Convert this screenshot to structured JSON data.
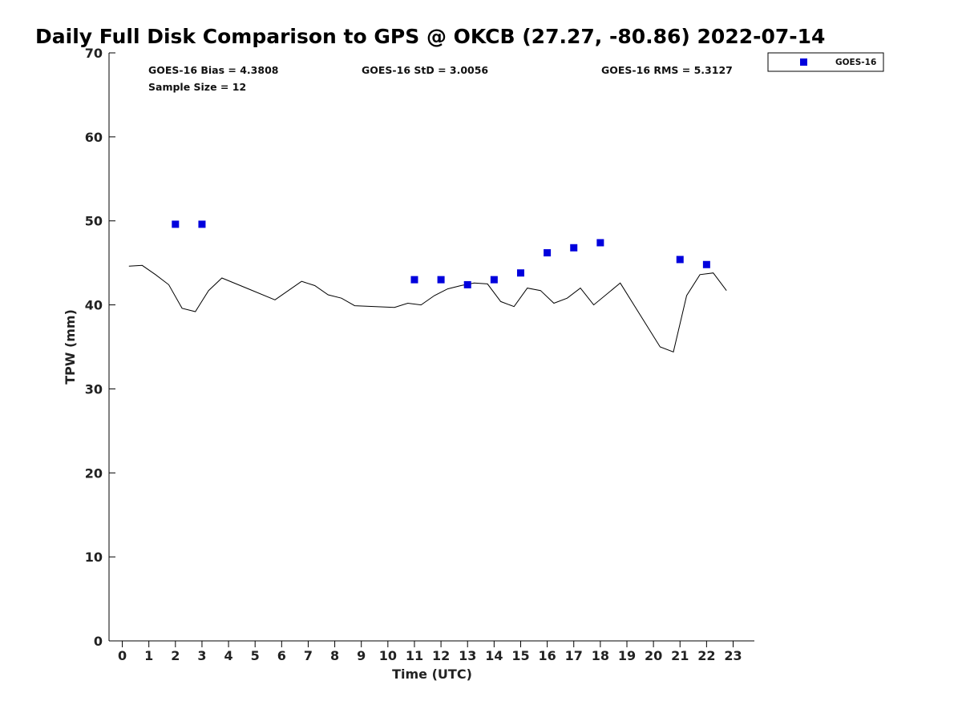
{
  "chart_data": {
    "type": "scatter",
    "title": "Daily Full Disk Comparison to GPS @ OKCB (27.27, -80.86) 2022-07-14",
    "xlabel": "Time (UTC)",
    "ylabel": "TPW (mm)",
    "xlim": [
      -0.5,
      23.8
    ],
    "ylim": [
      0,
      70
    ],
    "x_ticks": [
      0,
      1,
      2,
      3,
      4,
      5,
      6,
      7,
      8,
      9,
      10,
      11,
      12,
      13,
      14,
      15,
      16,
      17,
      18,
      19,
      20,
      21,
      22,
      23
    ],
    "y_ticks": [
      0,
      10,
      20,
      30,
      40,
      50,
      60,
      70
    ],
    "grid": false,
    "legend_position": "top-right, outside plot",
    "stats": {
      "bias": "GOES-16 Bias = 4.3808",
      "std": "GOES-16 StD = 3.0056",
      "rms": "GOES-16 RMS = 5.3127",
      "sample": "Sample Size = 12"
    },
    "series": [
      {
        "name": "GOES-16",
        "kind": "scatter",
        "color": "#0000dd",
        "marker": "square",
        "x": [
          2,
          3,
          11,
          12,
          13,
          14,
          15,
          16,
          17,
          18,
          21,
          22
        ],
        "y": [
          49.6,
          49.6,
          43.0,
          43.0,
          42.4,
          43.0,
          43.8,
          46.2,
          46.8,
          47.4,
          45.4,
          44.8
        ]
      },
      {
        "kind": "line",
        "color": "#000000",
        "x": [
          0.25,
          0.75,
          1.25,
          1.75,
          2.25,
          2.75,
          3.25,
          3.75,
          4.75,
          5.75,
          6.75,
          7.25,
          7.75,
          8.25,
          8.75,
          10.25,
          10.75,
          11.25,
          11.75,
          12.25,
          12.75,
          13.25,
          13.75,
          14.25,
          14.75,
          15.25,
          15.75,
          16.25,
          16.75,
          17.25,
          17.75,
          18.75,
          20.25,
          20.75,
          21.25,
          21.75,
          22.25,
          22.75
        ],
        "y": [
          44.6,
          44.7,
          43.6,
          42.4,
          39.6,
          39.2,
          41.7,
          43.2,
          41.9,
          40.6,
          42.8,
          42.3,
          41.2,
          40.8,
          39.9,
          39.7,
          40.2,
          40.0,
          41.1,
          41.9,
          42.3,
          42.6,
          42.5,
          40.4,
          39.8,
          42.0,
          41.7,
          40.2,
          40.8,
          42.0,
          40.0,
          42.6,
          35.0,
          34.4,
          41.1,
          43.6,
          43.8,
          41.7
        ]
      }
    ]
  }
}
